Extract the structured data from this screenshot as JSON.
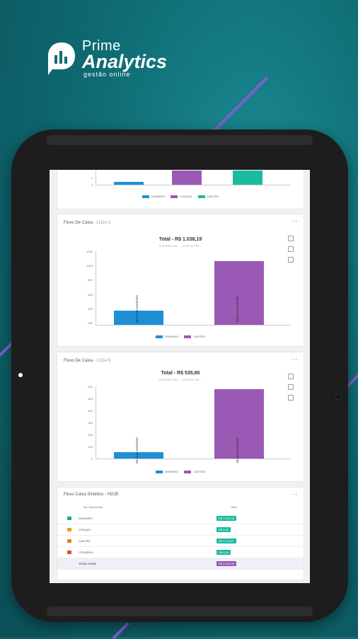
{
  "brand": {
    "line1": "Prime",
    "line2": "Analytics",
    "line3": "gestão online",
    "color": "#ffffff"
  },
  "colors": {
    "background": "#0f6c74",
    "stripe": "#7b5fd0",
    "dinheiro": "#1e8fd5",
    "cartao": "#9b59b6",
    "cheque": "#8e44ad",
    "outros": "#1abc9c"
  },
  "screen": {
    "top_card": {
      "legend": [
        "DINHEIRO",
        "CHEQUE",
        "CARTÃO"
      ]
    },
    "card1": {
      "title": "Fluxo De Caixa",
      "subtitle": "- LOJA 2",
      "total": "Total - R$ 1.038,19",
      "summary": "DINHEIRO R$ ... · CARTÃO R$ ...",
      "y_ticks": [
        "1200",
        "1000",
        "800",
        "600",
        "400",
        "200",
        "0"
      ],
      "legend": [
        "DINHEIRO",
        "CARTÃO"
      ],
      "bar_labels": [
        "R$ 178,85 DINHEIRO",
        "R$ 859,34 CARTÃO"
      ]
    },
    "card2": {
      "title": "Fluxo De Caixa",
      "subtitle": "- LOJA 5",
      "total": "Total - R$ 535,80",
      "summary": "DINHEIRO R$ ... · CARTÃO R$ ...",
      "y_ticks": [
        "600",
        "500",
        "400",
        "300",
        "200",
        "100",
        "0"
      ],
      "legend": [
        "DINHEIRO",
        "CARTÃO"
      ],
      "bar_labels": [
        "R$ 55,00 DINHEIRO",
        "R$ 480,80 CARTÃO"
      ]
    },
    "card3": {
      "title": "Fluxo Caixa Sintético - HOJE",
      "col_tipo": "Tipo Movimento",
      "col_valor": "Valor",
      "rows": [
        {
          "label": "DINHEIRO",
          "value": "R$ 1.105,00",
          "color": "#1abc9c",
          "icon": "cash-icon"
        },
        {
          "label": "CHEQUE",
          "value": "R$ 0,00",
          "color": "#1abc9c",
          "icon": "cheque-icon"
        },
        {
          "label": "CARTÃO",
          "value": "R$ 1.114,00",
          "color": "#1abc9c",
          "icon": "card-icon"
        },
        {
          "label": "CONVÊNIO",
          "value": "R$ 0,00",
          "color": "#1abc9c",
          "icon": "agreement-icon"
        },
        {
          "label": "TOTAL HOJE",
          "value": "R$ 2.219,00",
          "color": "#9b59b6",
          "icon": ""
        }
      ]
    }
  },
  "chart_data": [
    {
      "type": "bar",
      "title": "Total - R$ 1.038,19",
      "categories": [
        "DINHEIRO",
        "CARTÃO"
      ],
      "values": [
        178.85,
        859.34
      ],
      "ylim": [
        0,
        1200
      ],
      "grid": false,
      "legend": "bottom"
    },
    {
      "type": "bar",
      "title": "Total - R$ 535,80",
      "categories": [
        "DINHEIRO",
        "CARTÃO"
      ],
      "values": [
        55.0,
        480.8
      ],
      "ylim": [
        0,
        600
      ],
      "grid": false,
      "legend": "bottom"
    }
  ]
}
